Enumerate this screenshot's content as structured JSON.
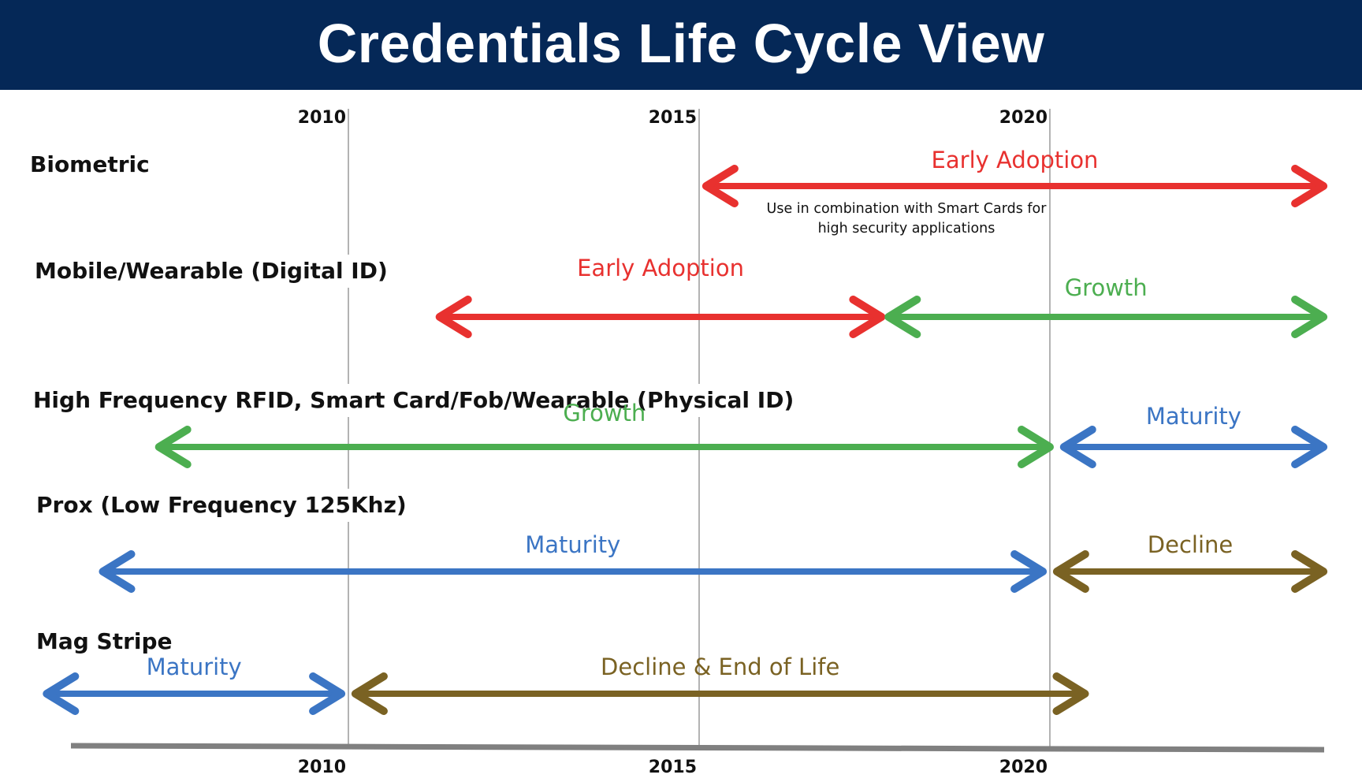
{
  "title": "Credentials Life Cycle View",
  "colors": {
    "header_bg": "#052857",
    "early_adoption": "#E8312F",
    "growth": "#4CAE50",
    "maturity": "#3B75C4",
    "decline": "#7A6223",
    "axis": "#808080",
    "gridline": "#8a8a8a"
  },
  "chart_data": {
    "type": "timeline",
    "years": [
      "2010",
      "2015",
      "2020"
    ],
    "rows": [
      {
        "label": "Biometric",
        "phases": [
          {
            "label": "Early Adoption",
            "color_key": "early_adoption",
            "start": 2015.1,
            "end": 2023.9
          }
        ],
        "note_lines": [
          "Use in combination with Smart Cards for",
          "high security applications"
        ]
      },
      {
        "label": "Mobile/Wearable (Digital ID)",
        "phases": [
          {
            "label": "Early Adoption",
            "color_key": "early_adoption",
            "start": 2011.3,
            "end": 2017.6
          },
          {
            "label": "Growth",
            "color_key": "growth",
            "start": 2017.7,
            "end": 2023.9
          }
        ]
      },
      {
        "label": "High Frequency RFID, Smart Card/Fob/Wearable (Physical ID)",
        "phases": [
          {
            "label": "Growth",
            "color_key": "growth",
            "start": 2007.3,
            "end": 2020.0
          },
          {
            "label": "Maturity",
            "color_key": "maturity",
            "start": 2020.2,
            "end": 2023.9
          }
        ]
      },
      {
        "label": "Prox (Low Frequency  125Khz)",
        "phases": [
          {
            "label": "Maturity",
            "color_key": "maturity",
            "start": 2006.5,
            "end": 2019.9
          },
          {
            "label": "Decline",
            "color_key": "decline",
            "start": 2020.1,
            "end": 2023.9
          }
        ]
      },
      {
        "label": "Mag Stripe",
        "phases": [
          {
            "label": "Maturity",
            "color_key": "maturity",
            "start": 2005.7,
            "end": 2009.9
          },
          {
            "label": "Decline & End of Life",
            "color_key": "decline",
            "start": 2010.1,
            "end": 2020.5
          }
        ]
      }
    ]
  }
}
